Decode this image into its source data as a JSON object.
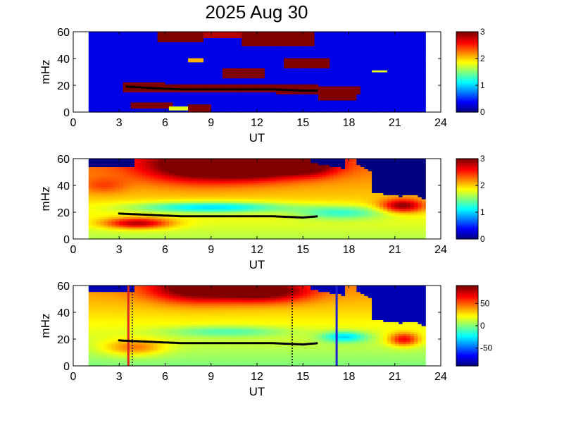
{
  "title": "2025 Aug 30",
  "chart_data": [
    {
      "type": "heatmap",
      "panel": "top",
      "xlabel": "UT",
      "ylabel": "mHz",
      "xlim": [
        0,
        24
      ],
      "ylim": [
        0,
        60
      ],
      "xticks": [
        "0",
        "3",
        "6",
        "9",
        "12",
        "15",
        "18",
        "21",
        "24"
      ],
      "yticks": [
        "0",
        "20",
        "40",
        "60"
      ],
      "data_range_ut": [
        1,
        23
      ],
      "colorbar": {
        "range": [
          0,
          3
        ],
        "ticks": [
          "0",
          "1",
          "2",
          "3"
        ]
      },
      "tracked_peak": {
        "x": [
          3.5,
          5,
          7,
          9,
          11,
          13,
          15,
          16
        ],
        "y": [
          19,
          18,
          17,
          17,
          17,
          17,
          16,
          16
        ]
      }
    },
    {
      "type": "heatmap",
      "panel": "middle",
      "xlabel": "UT",
      "ylabel": "mHz",
      "xlim": [
        0,
        24
      ],
      "ylim": [
        0,
        60
      ],
      "xticks": [
        "0",
        "3",
        "6",
        "9",
        "12",
        "15",
        "18",
        "21",
        "24"
      ],
      "yticks": [
        "0",
        "20",
        "40",
        "60"
      ],
      "data_range_ut": [
        1,
        23
      ],
      "colorbar": {
        "range": [
          0,
          3
        ],
        "ticks": [
          "0",
          "1",
          "2",
          "3"
        ]
      },
      "tracked_peak": {
        "x": [
          3,
          5,
          7,
          9,
          11,
          13,
          15,
          16
        ],
        "y": [
          19,
          18,
          17,
          17,
          17,
          17,
          16,
          17
        ]
      }
    },
    {
      "type": "heatmap",
      "panel": "bottom",
      "xlabel": "UT",
      "ylabel": "mHz",
      "xlim": [
        0,
        24
      ],
      "ylim": [
        0,
        60
      ],
      "xticks": [
        "0",
        "3",
        "6",
        "9",
        "12",
        "15",
        "18",
        "21",
        "24"
      ],
      "yticks": [
        "0",
        "20",
        "40",
        "60"
      ],
      "data_range_ut": [
        1,
        23
      ],
      "colorbar": {
        "range": [
          -90,
          90
        ],
        "ticks": [
          "50",
          "0",
          "-50"
        ]
      },
      "tracked_peak": {
        "x": [
          3,
          5,
          7,
          9,
          11,
          13,
          15,
          16
        ],
        "y": [
          19,
          18,
          17,
          17,
          17,
          17,
          16,
          17
        ]
      },
      "markers": [
        {
          "x": 3.6,
          "color": "#e0251b",
          "style": "solid"
        },
        {
          "x": 3.85,
          "color": "#000000",
          "style": "dotted"
        },
        {
          "x": 14.3,
          "color": "#000000",
          "style": "dotted"
        },
        {
          "x": 17.2,
          "color": "#1f1fd0",
          "style": "solid"
        }
      ]
    }
  ]
}
